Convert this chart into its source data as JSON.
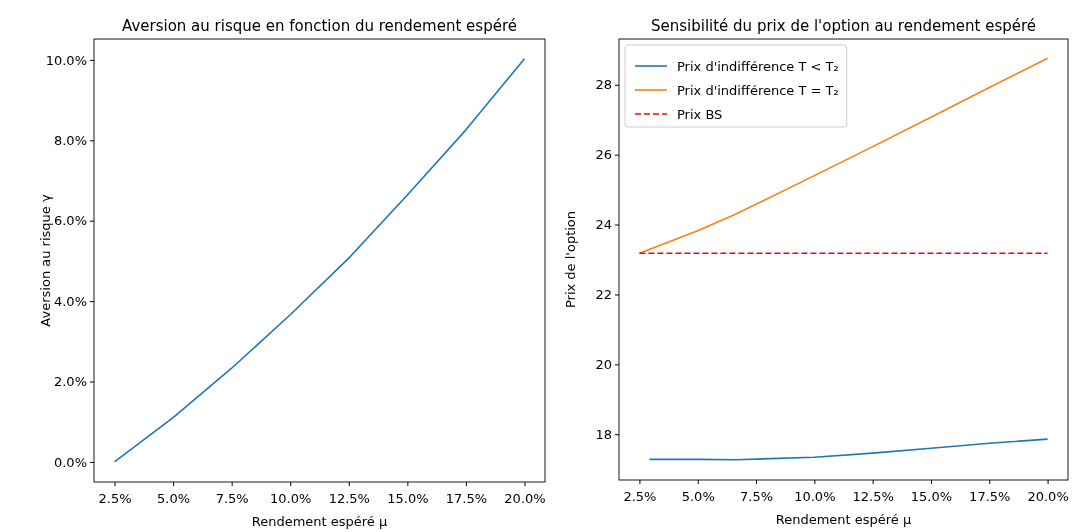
{
  "chart_data": [
    {
      "type": "line",
      "title": "Aversion au risque en fonction du rendement espéré",
      "xlabel": "Rendement espéré μ",
      "ylabel": "Aversion au risque γ",
      "xlim": [
        1.625,
        20.875
      ],
      "ylim": [
        -0.5,
        10.52
      ],
      "xticks": [
        {
          "value": 2.5,
          "label": "2.5%"
        },
        {
          "value": 5,
          "label": "5.0%"
        },
        {
          "value": 7.5,
          "label": "7.5%"
        },
        {
          "value": 10,
          "label": "10.0%"
        },
        {
          "value": 12.5,
          "label": "12.5%"
        },
        {
          "value": 15,
          "label": "15.0%"
        },
        {
          "value": 17.5,
          "label": "17.5%"
        },
        {
          "value": 20,
          "label": "20.0%"
        }
      ],
      "yticks": [
        {
          "value": 0,
          "label": "0.0%"
        },
        {
          "value": 2,
          "label": "2.0%"
        },
        {
          "value": 4,
          "label": "4.0%"
        },
        {
          "value": 6,
          "label": "6.0%"
        },
        {
          "value": 8,
          "label": "8.0%"
        },
        {
          "value": 10,
          "label": "10.0%"
        }
      ],
      "x": [
        2.5,
        5,
        7.5,
        10,
        12.5,
        15,
        17.5,
        20
      ],
      "series": [
        {
          "color": "#1f77b4",
          "values": [
            0.0,
            1.1,
            2.33,
            3.66,
            5.07,
            6.64,
            8.26,
            10.03
          ]
        }
      ]
    },
    {
      "type": "line",
      "title": "Sensibilité du prix de l'option au rendement espéré",
      "xlabel": "Rendement espéré μ",
      "ylabel": "Prix de l'option",
      "xlim": [
        1.625,
        20.875
      ],
      "ylim": [
        16.69,
        29.31
      ],
      "xticks": [
        {
          "value": 2.5,
          "label": "2.5%"
        },
        {
          "value": 5,
          "label": "5.0%"
        },
        {
          "value": 7.5,
          "label": "7.5%"
        },
        {
          "value": 10,
          "label": "10.0%"
        },
        {
          "value": 12.5,
          "label": "12.5%"
        },
        {
          "value": 15,
          "label": "15.0%"
        },
        {
          "value": 17.5,
          "label": "17.5%"
        },
        {
          "value": 20,
          "label": "20.0%"
        }
      ],
      "yticks": [
        18,
        20,
        22,
        24,
        26,
        28
      ],
      "legend": "top left",
      "series": [
        {
          "name": "Prix d'indifférence T < T₂",
          "color": "#1f77b4",
          "x": [
            2.93,
            5,
            6.64,
            10,
            12.5,
            15,
            17.5,
            20
          ],
          "values": [
            17.28,
            17.28,
            17.27,
            17.34,
            17.46,
            17.6,
            17.74,
            17.86
          ]
        },
        {
          "name": "Prix d'indifférence T = T₂",
          "color": "#ff7f0e",
          "x": [
            2.5,
            5,
            6.64,
            10,
            12.5,
            15,
            17.5,
            20
          ],
          "values": [
            23.18,
            23.82,
            24.3,
            25.4,
            26.23,
            27.07,
            27.92,
            28.76
          ]
        },
        {
          "name": "Prix BS",
          "color": "#ff0000",
          "line_style": "dashed",
          "x": [
            2.5,
            20
          ],
          "values": [
            23.18,
            23.18
          ]
        }
      ]
    }
  ]
}
